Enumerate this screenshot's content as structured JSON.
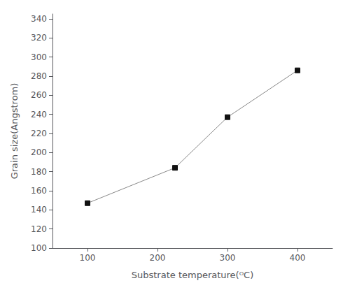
{
  "chart_data": {
    "type": "line",
    "xlabel": "Substrate temperature(ᴼC)",
    "ylabel": "Grain size(Angstrom)",
    "x": [
      100,
      225,
      300,
      400
    ],
    "values": [
      147,
      184,
      237,
      286
    ],
    "xlim": [
      50,
      450
    ],
    "ylim": [
      100,
      345
    ],
    "xticks": [
      100,
      200,
      300,
      400
    ],
    "yticks": [
      100,
      120,
      140,
      160,
      180,
      200,
      220,
      240,
      260,
      280,
      300,
      320,
      340
    ],
    "color": "#888888",
    "colors": [
      "#111111",
      "#111111",
      "#111111",
      "#111111"
    ],
    "marker": "square",
    "grid": false
  }
}
